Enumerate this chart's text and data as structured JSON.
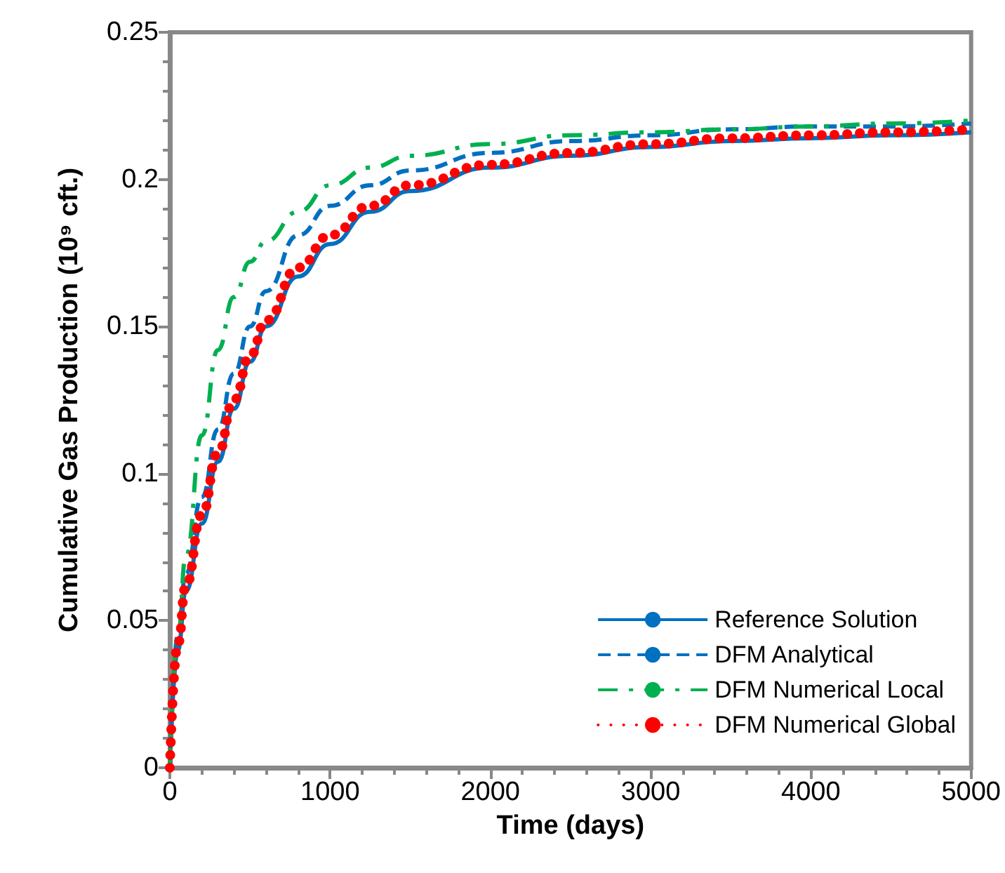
{
  "chart_data": {
    "type": "line",
    "xlabel": "Time (days)",
    "ylabel": "Cumulative Gas Production (10⁹ cft.)",
    "x": [
      0,
      50,
      100,
      200,
      300,
      400,
      500,
      600,
      800,
      1000,
      1250,
      1500,
      2000,
      2500,
      3000,
      3500,
      4000,
      4500,
      5000
    ],
    "series": [
      {
        "name": "Reference Solution",
        "color": "#0070c0",
        "line_style": "solid",
        "values": [
          0,
          0.04,
          0.06,
          0.083,
          0.104,
          0.122,
          0.138,
          0.15,
          0.167,
          0.178,
          0.189,
          0.196,
          0.204,
          0.208,
          0.211,
          0.213,
          0.214,
          0.215,
          0.216
        ]
      },
      {
        "name": "DFM Analytical",
        "color": "#0070c0",
        "line_style": "dashed",
        "values": [
          0,
          0.045,
          0.066,
          0.092,
          0.115,
          0.134,
          0.15,
          0.162,
          0.181,
          0.191,
          0.198,
          0.203,
          0.209,
          0.213,
          0.215,
          0.217,
          0.218,
          0.218,
          0.219
        ]
      },
      {
        "name": "DFM Numerical Local",
        "color": "#00b050",
        "line_style": "dashdot",
        "values": [
          0,
          0.045,
          0.072,
          0.113,
          0.142,
          0.16,
          0.172,
          0.179,
          0.189,
          0.198,
          0.204,
          0.208,
          0.212,
          0.215,
          0.216,
          0.217,
          0.218,
          0.219,
          0.22
        ]
      },
      {
        "name": "DFM Numerical Global",
        "color": "#ff0000",
        "line_style": "dotted",
        "values": [
          0,
          0.042,
          0.062,
          0.086,
          0.107,
          0.125,
          0.14,
          0.152,
          0.17,
          0.181,
          0.191,
          0.198,
          0.205,
          0.209,
          0.212,
          0.214,
          0.215,
          0.216,
          0.217
        ]
      }
    ],
    "xlim": [
      0,
      5000
    ],
    "xticks": [
      0,
      1000,
      2000,
      3000,
      4000,
      5000
    ],
    "ylim": [
      0,
      0.25
    ],
    "yticks": [
      0,
      0.05,
      0.1,
      0.15,
      0.2,
      0.25
    ],
    "grid": false,
    "legend": "bottom right",
    "marker": "none"
  }
}
